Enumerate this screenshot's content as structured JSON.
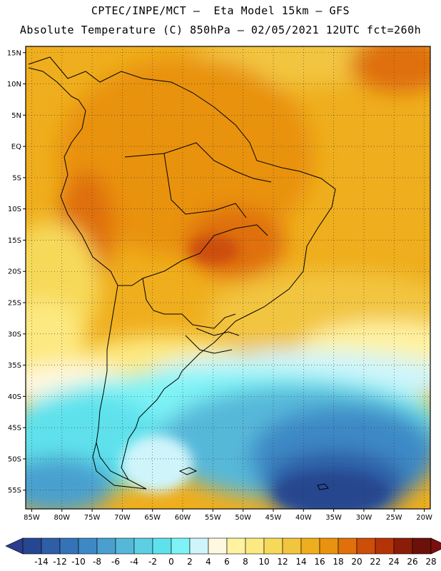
{
  "header": {
    "line1": "CPTEC/INPE/MCT –  Eta Model 15km – GFS",
    "line2": "Absolute Temperature (C) 850hPa – 02/05/2021 12UTC fct=260h"
  },
  "map": {
    "lon_labels": [
      "85W",
      "80W",
      "75W",
      "70W",
      "65W",
      "60W",
      "55W",
      "50W",
      "45W",
      "40W",
      "35W",
      "30W",
      "25W",
      "20W"
    ],
    "lat_labels": [
      "15N",
      "10N",
      "5N",
      "EQ",
      "5S",
      "10S",
      "15S",
      "20S",
      "25S",
      "30S",
      "35S",
      "40S",
      "45S",
      "50S",
      "55S"
    ],
    "lon_range": [
      -86,
      -19
    ],
    "lat_range": [
      -58,
      16
    ],
    "grid": "dotted",
    "field": "Absolute Temperature (C) 850hPa"
  },
  "colorbar": {
    "labels": [
      "-14",
      "-12",
      "-10",
      "-8",
      "-6",
      "-4",
      "-2",
      "0",
      "2",
      "4",
      "6",
      "8",
      "10",
      "12",
      "14",
      "16",
      "18",
      "20",
      "22",
      "24",
      "26",
      "28"
    ],
    "colors": [
      "#26478f",
      "#2d5ea6",
      "#3473b7",
      "#3d89c6",
      "#49a0cf",
      "#56b8d9",
      "#5ccfe3",
      "#5fe1ec",
      "#7df3f5",
      "#cff5fb",
      "#fff8e1",
      "#fff2a0",
      "#fde981",
      "#f7d95a",
      "#f2c53f",
      "#efae1d",
      "#e99210",
      "#df700a",
      "#cc4e08",
      "#b53407",
      "#8b1d08",
      "#6b1109"
    ],
    "under_color": "#2a3d8f",
    "over_color": "#7a0f0f"
  }
}
